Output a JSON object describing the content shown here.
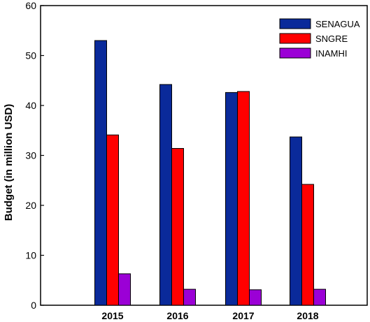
{
  "chart_data": {
    "type": "bar",
    "title": "",
    "xlabel": "",
    "ylabel": "Budget (in million USD)",
    "ylim": [
      0,
      60
    ],
    "yticks": [
      0,
      10,
      20,
      30,
      40,
      50,
      60
    ],
    "categories": [
      "2015",
      "2016",
      "2017",
      "2018"
    ],
    "series": [
      {
        "name": "SENAGUA",
        "color": "#0a2a9a",
        "values": [
          53.0,
          44.2,
          42.6,
          33.7
        ]
      },
      {
        "name": "SNGRE",
        "color": "#ff0000",
        "values": [
          34.1,
          31.4,
          42.8,
          24.2
        ]
      },
      {
        "name": "INAMHI",
        "color": "#9b00d6",
        "values": [
          6.3,
          3.2,
          3.1,
          3.2
        ]
      }
    ],
    "grid": false,
    "legend": "top-right"
  }
}
